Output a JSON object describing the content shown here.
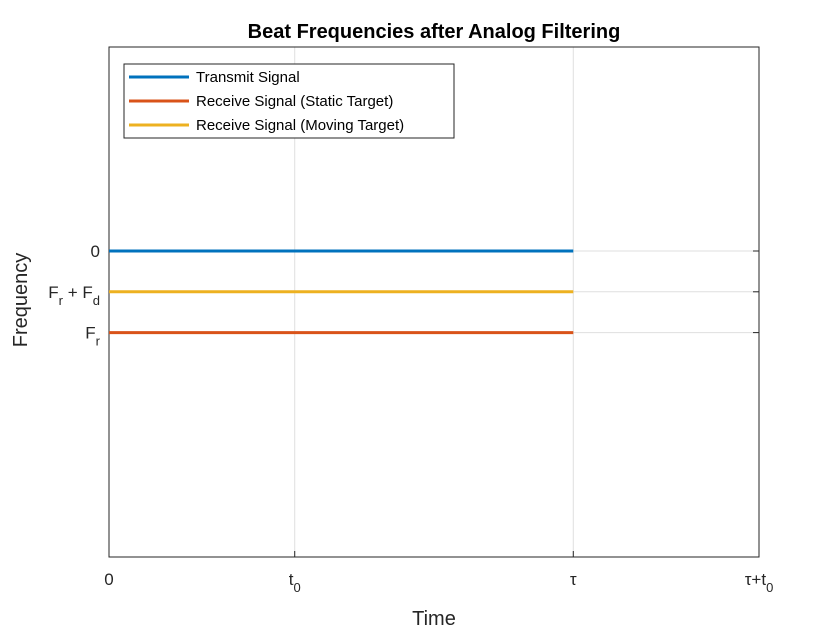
{
  "chart_data": {
    "type": "line",
    "title": "Beat Frequencies after Analog Filtering",
    "xlabel": "Time",
    "ylabel": "Frequency",
    "xlim": [
      0,
      1.4
    ],
    "ylim": [
      -1.5,
      1
    ],
    "x_ticks": [
      {
        "value": 0,
        "label": "0",
        "sub": ""
      },
      {
        "value": 0.4,
        "label": "t",
        "sub": "0"
      },
      {
        "value": 1.0,
        "label": "τ",
        "sub": ""
      },
      {
        "value": 1.4,
        "label": "τ+t",
        "sub": "0"
      }
    ],
    "y_ticks": [
      {
        "value": 0,
        "parts": [
          {
            "t": "0",
            "s": ""
          }
        ]
      },
      {
        "value": -0.2,
        "parts": [
          {
            "t": "F",
            "s": "r"
          },
          {
            "t": " + F",
            "s": "d"
          }
        ]
      },
      {
        "value": -0.4,
        "parts": [
          {
            "t": "F",
            "s": "r"
          }
        ]
      }
    ],
    "grid": true,
    "legend_position": "top-left",
    "series": [
      {
        "name": "Transmit Signal",
        "color": "#0072BD",
        "x": [
          0,
          1.0
        ],
        "y": [
          0,
          0
        ]
      },
      {
        "name": "Receive Signal (Static Target)",
        "color": "#D95319",
        "x": [
          0,
          1.0
        ],
        "y": [
          -0.4,
          -0.4
        ]
      },
      {
        "name": "Receive Signal (Moving Target)",
        "color": "#EDB120",
        "x": [
          0,
          1.0
        ],
        "y": [
          -0.2,
          -0.2
        ]
      }
    ]
  }
}
